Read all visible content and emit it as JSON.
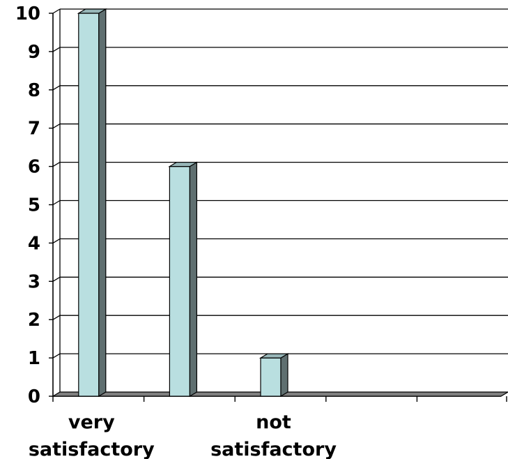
{
  "chart_data": {
    "type": "bar",
    "title": "",
    "xlabel": "",
    "ylabel": "",
    "ylim": [
      0,
      10
    ],
    "yticks": [
      0,
      1,
      2,
      3,
      4,
      5,
      6,
      7,
      8,
      9,
      10
    ],
    "grid": true,
    "legend": "none",
    "categories": [
      [
        "very",
        "satisfactory"
      ],
      [],
      [
        "not",
        "satisfactory"
      ],
      [],
      []
    ],
    "values": [
      10,
      6,
      1,
      0,
      0
    ],
    "colors": {
      "bar_front": "#b9dfe0",
      "bar_side": "#5f6f70",
      "bar_top": "#97b6b8",
      "floor": "#808080",
      "gridline": "#000000",
      "axis": "#000000"
    }
  }
}
